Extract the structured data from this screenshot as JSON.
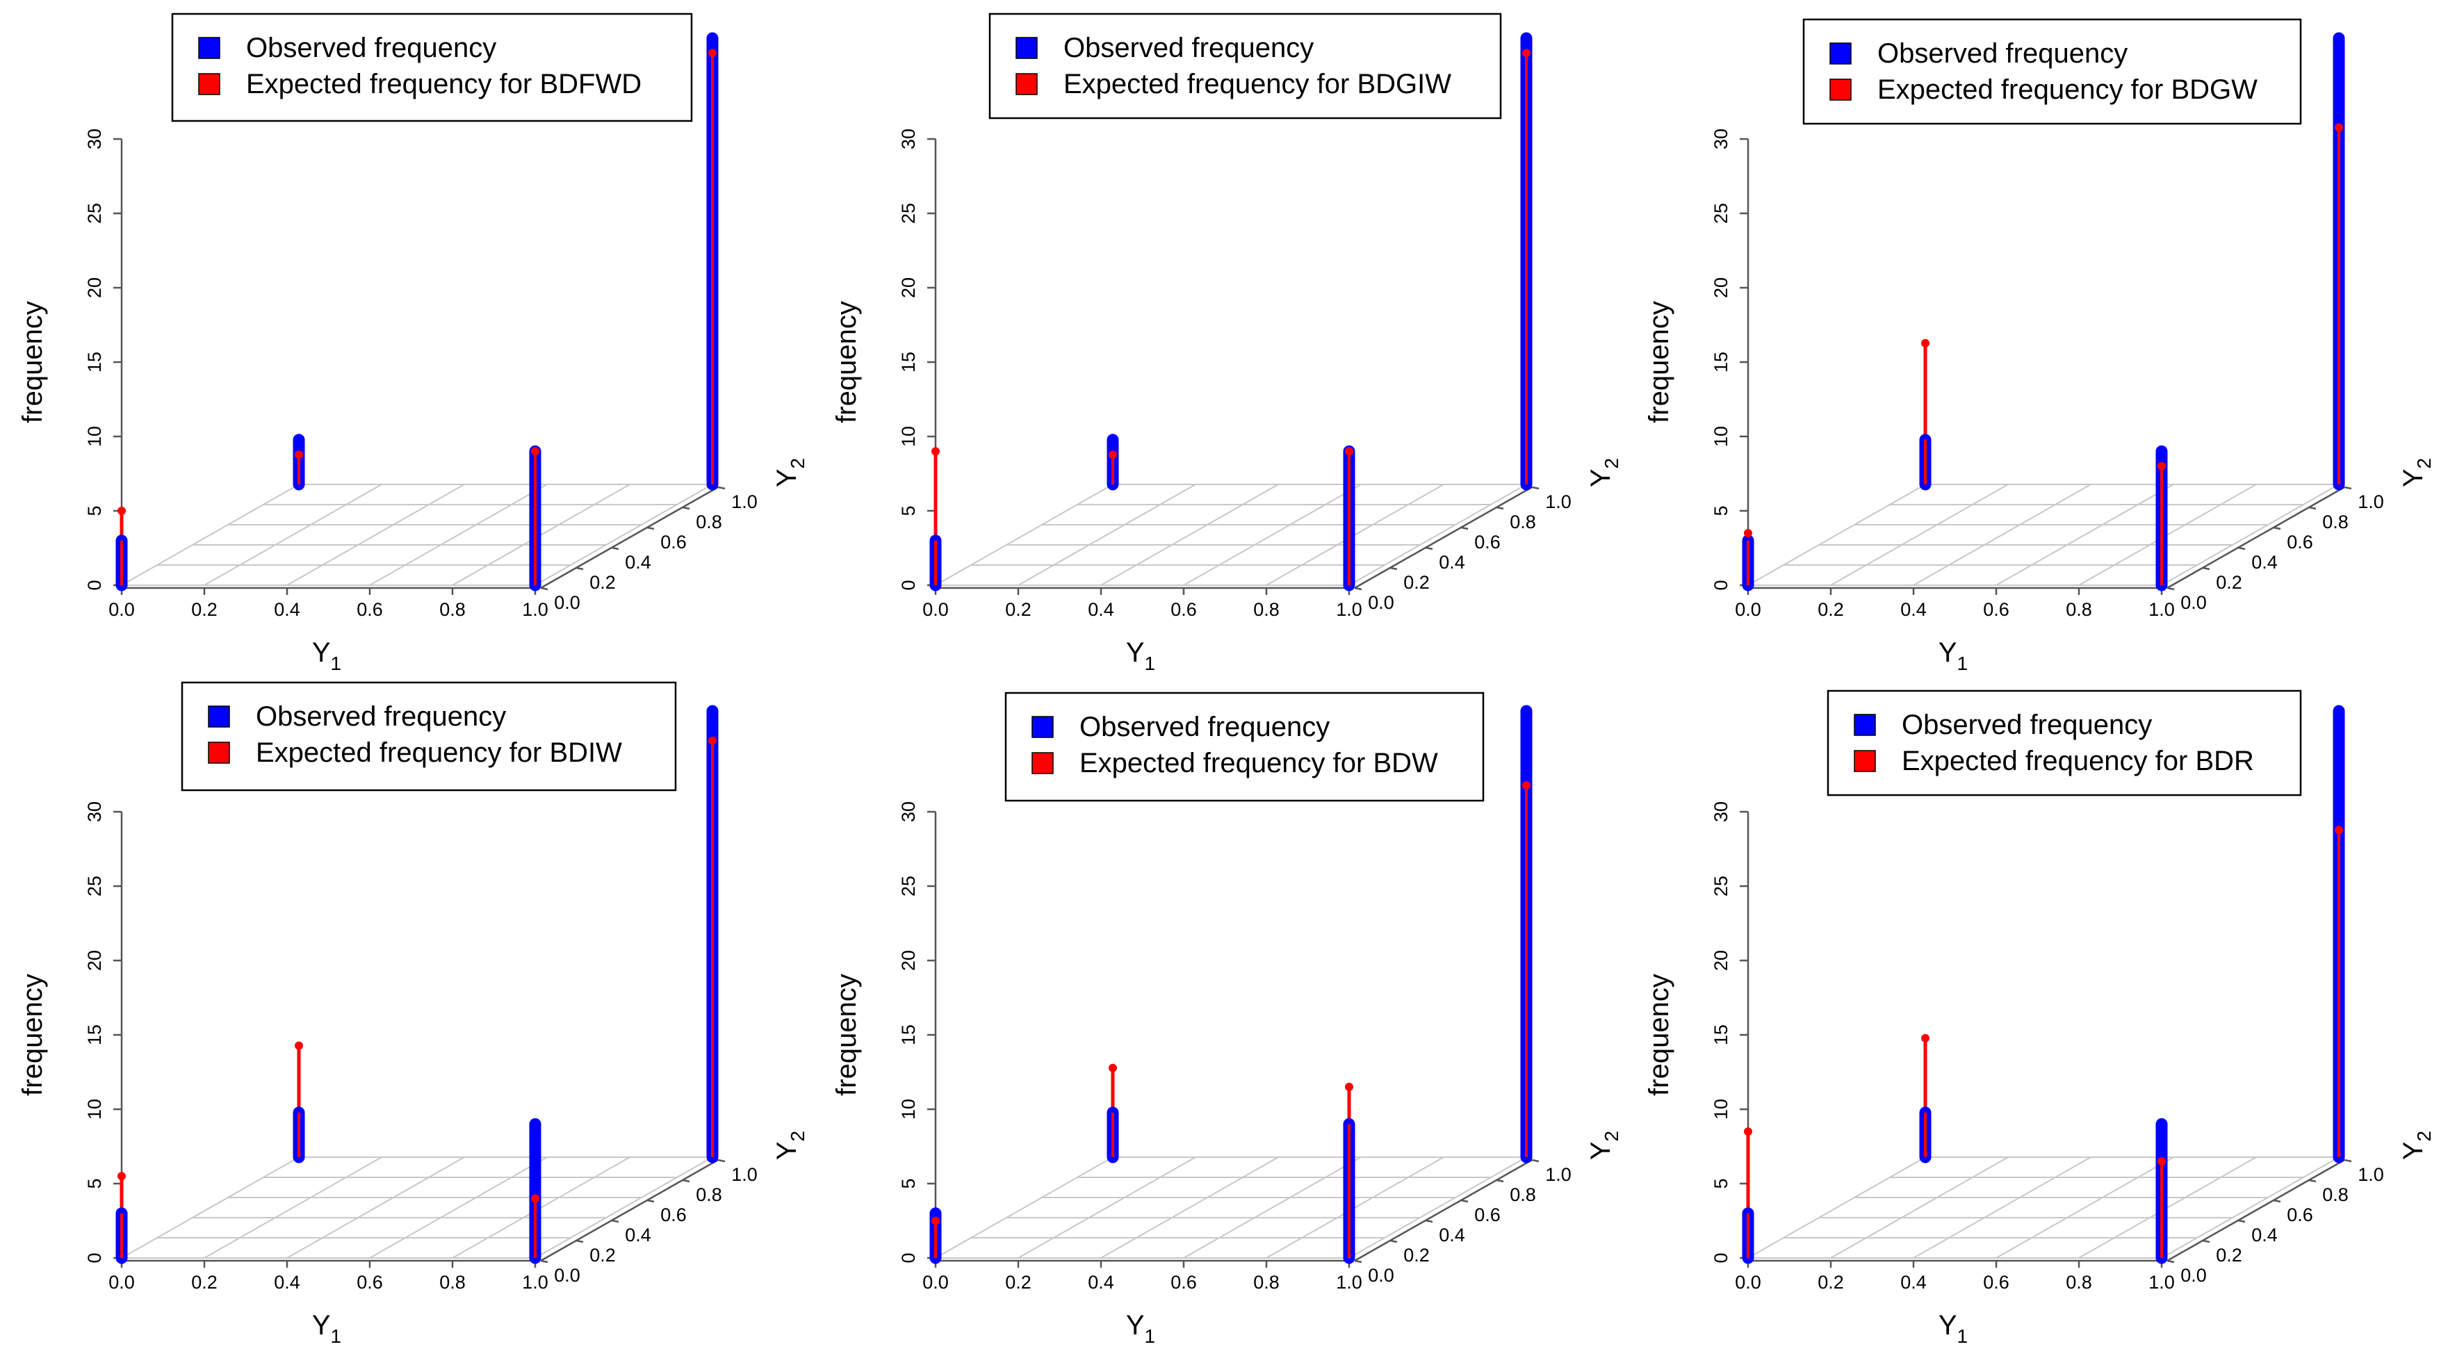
{
  "colors": {
    "observed": "#0000ff",
    "expected": "#ff0000",
    "axis": "#555555",
    "grid": "#c8c8c8",
    "text": "#000000"
  },
  "axis_labels": {
    "z": "frequency",
    "x": "Y",
    "x_sub": "1",
    "y": "Y",
    "y_sub": "2"
  },
  "chart_data": [
    {
      "type": "3d-histogram",
      "legend": [
        "Observed frequency",
        "Expected frequency for BDFWD"
      ],
      "zlabel": "frequency",
      "xlabel": "Y1",
      "ylabel": "Y2",
      "zlim": [
        0,
        30
      ],
      "z_ticks": [
        "0",
        "5",
        "10",
        "15",
        "20",
        "25",
        "30"
      ],
      "x_ticks": [
        "0.0",
        "0.2",
        "0.4",
        "0.6",
        "0.8",
        "1.0"
      ],
      "y_ticks": [
        "0.0",
        "0.2",
        "0.4",
        "0.6",
        "0.8",
        "1.0"
      ],
      "points": [
        {
          "cell": "(0,0)",
          "observed": 3,
          "expected": 5
        },
        {
          "cell": "(0,1)",
          "observed": 3,
          "expected": 2
        },
        {
          "cell": "(1,0)",
          "observed": 9,
          "expected": 9
        },
        {
          "cell": "(1,1)",
          "observed": 30,
          "expected": 29
        }
      ]
    },
    {
      "type": "3d-histogram",
      "legend": [
        "Observed frequency",
        "Expected frequency for BDGIW"
      ],
      "zlabel": "frequency",
      "xlabel": "Y1",
      "ylabel": "Y2",
      "zlim": [
        0,
        30
      ],
      "z_ticks": [
        "0",
        "5",
        "10",
        "15",
        "20",
        "25",
        "30"
      ],
      "x_ticks": [
        "0.0",
        "0.2",
        "0.4",
        "0.6",
        "0.8",
        "1.0"
      ],
      "y_ticks": [
        "0.0",
        "0.2",
        "0.4",
        "0.6",
        "0.8",
        "1.0"
      ],
      "points": [
        {
          "cell": "(0,0)",
          "observed": 3,
          "expected": 9
        },
        {
          "cell": "(0,1)",
          "observed": 3,
          "expected": 2
        },
        {
          "cell": "(1,0)",
          "observed": 9,
          "expected": 9
        },
        {
          "cell": "(1,1)",
          "observed": 30,
          "expected": 29
        }
      ]
    },
    {
      "type": "3d-histogram",
      "legend": [
        "Observed frequency",
        "Expected frequency for BDGW"
      ],
      "zlabel": "frequency",
      "xlabel": "Y1",
      "ylabel": "Y2",
      "zlim": [
        0,
        30
      ],
      "z_ticks": [
        "0",
        "5",
        "10",
        "15",
        "20",
        "25",
        "30"
      ],
      "x_ticks": [
        "0.0",
        "0.2",
        "0.4",
        "0.6",
        "0.8",
        "1.0"
      ],
      "y_ticks": [
        "0.0",
        "0.2",
        "0.4",
        "0.6",
        "0.8",
        "1.0"
      ],
      "points": [
        {
          "cell": "(0,0)",
          "observed": 3,
          "expected": 3.5
        },
        {
          "cell": "(0,1)",
          "observed": 3,
          "expected": 9.5
        },
        {
          "cell": "(1,0)",
          "observed": 9,
          "expected": 8
        },
        {
          "cell": "(1,1)",
          "observed": 30,
          "expected": 24
        }
      ]
    },
    {
      "type": "3d-histogram",
      "legend": [
        "Observed frequency",
        "Expected frequency for BDIW"
      ],
      "zlabel": "frequency",
      "xlabel": "Y1",
      "ylabel": "Y2",
      "zlim": [
        0,
        30
      ],
      "z_ticks": [
        "0",
        "5",
        "10",
        "15",
        "20",
        "25",
        "30"
      ],
      "x_ticks": [
        "0.0",
        "0.2",
        "0.4",
        "0.6",
        "0.8",
        "1.0"
      ],
      "y_ticks": [
        "0.0",
        "0.2",
        "0.4",
        "0.6",
        "0.8",
        "1.0"
      ],
      "points": [
        {
          "cell": "(0,0)",
          "observed": 3,
          "expected": 5.5
        },
        {
          "cell": "(0,1)",
          "observed": 3,
          "expected": 7.5
        },
        {
          "cell": "(1,0)",
          "observed": 9,
          "expected": 4
        },
        {
          "cell": "(1,1)",
          "observed": 30,
          "expected": 28
        }
      ]
    },
    {
      "type": "3d-histogram",
      "legend": [
        "Observed frequency",
        "Expected frequency for BDW"
      ],
      "zlabel": "frequency",
      "xlabel": "Y1",
      "ylabel": "Y2",
      "zlim": [
        0,
        30
      ],
      "z_ticks": [
        "0",
        "5",
        "10",
        "15",
        "20",
        "25",
        "30"
      ],
      "x_ticks": [
        "0.0",
        "0.2",
        "0.4",
        "0.6",
        "0.8",
        "1.0"
      ],
      "y_ticks": [
        "0.0",
        "0.2",
        "0.4",
        "0.6",
        "0.8",
        "1.0"
      ],
      "points": [
        {
          "cell": "(0,0)",
          "observed": 3,
          "expected": 2.5
        },
        {
          "cell": "(0,1)",
          "observed": 3,
          "expected": 6
        },
        {
          "cell": "(1,0)",
          "observed": 9,
          "expected": 11.5
        },
        {
          "cell": "(1,1)",
          "observed": 30,
          "expected": 25
        }
      ]
    },
    {
      "type": "3d-histogram",
      "legend": [
        "Observed frequency",
        "Expected frequency for BDR"
      ],
      "zlabel": "frequency",
      "xlabel": "Y1",
      "ylabel": "Y2",
      "zlim": [
        0,
        30
      ],
      "z_ticks": [
        "0",
        "5",
        "10",
        "15",
        "20",
        "25",
        "30"
      ],
      "x_ticks": [
        "0.0",
        "0.2",
        "0.4",
        "0.6",
        "0.8",
        "1.0"
      ],
      "y_ticks": [
        "0.0",
        "0.2",
        "0.4",
        "0.6",
        "0.8",
        "1.0"
      ],
      "points": [
        {
          "cell": "(0,0)",
          "observed": 3,
          "expected": 8.5
        },
        {
          "cell": "(0,1)",
          "observed": 3,
          "expected": 8
        },
        {
          "cell": "(1,0)",
          "observed": 9,
          "expected": 6.5
        },
        {
          "cell": "(1,1)",
          "observed": 30,
          "expected": 22
        }
      ]
    }
  ]
}
